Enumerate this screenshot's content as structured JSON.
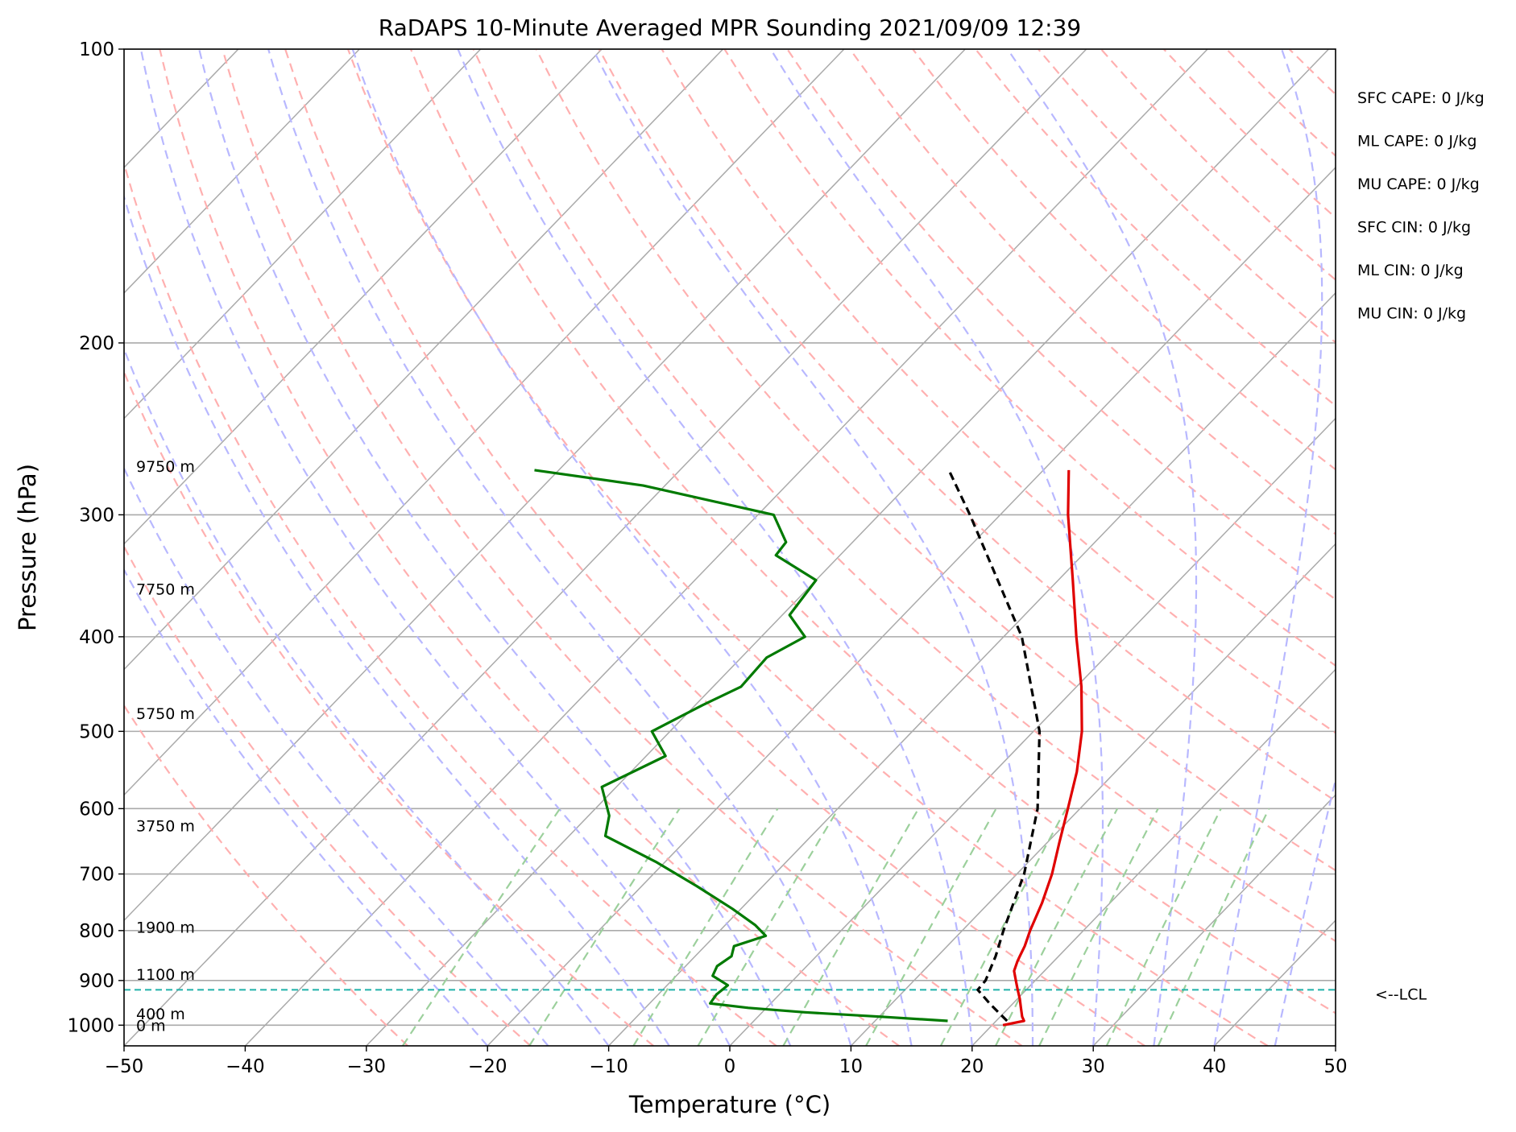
{
  "chart_data": {
    "type": "line",
    "subtype": "skew-T log-p",
    "title": "RaDAPS 10-Minute Averaged MPR Sounding 2021/09/09 12:39",
    "xlabel": "Temperature (°C)",
    "ylabel": "Pressure (hPa)",
    "xlim": [
      -50,
      50
    ],
    "ylim": [
      1050,
      100
    ],
    "y_scale": "log",
    "x_ticks": [
      "−50",
      "−40",
      "−30",
      "−20",
      "−10",
      "0",
      "10",
      "20",
      "30",
      "40",
      "50"
    ],
    "y_ticks": [
      "100",
      "200",
      "300",
      "400",
      "500",
      "600",
      "700",
      "800",
      "900",
      "1000"
    ],
    "grid": true,
    "series": [
      {
        "role": "temperature",
        "color": "#e00000",
        "points": [
          [
            1000,
            20.9
          ],
          [
            990,
            22.3
          ],
          [
            980,
            21.8
          ],
          [
            960,
            21.0
          ],
          [
            940,
            20.2
          ],
          [
            920,
            19.3
          ],
          [
            900,
            18.4
          ],
          [
            880,
            17.5
          ],
          [
            860,
            17.0
          ],
          [
            850,
            16.8
          ],
          [
            830,
            16.4
          ],
          [
            800,
            15.6
          ],
          [
            750,
            14.4
          ],
          [
            700,
            12.9
          ],
          [
            650,
            11.0
          ],
          [
            600,
            9.0
          ],
          [
            550,
            6.8
          ],
          [
            500,
            4.0
          ],
          [
            450,
            0.4
          ],
          [
            400,
            -4.0
          ],
          [
            350,
            -8.8
          ],
          [
            300,
            -14.4
          ],
          [
            270,
            -17.9
          ]
        ]
      },
      {
        "role": "dewpoint",
        "color": "#007a00",
        "points": [
          [
            990,
            16.0
          ],
          [
            980,
            10.0
          ],
          [
            970,
            3.5
          ],
          [
            960,
            -1.5
          ],
          [
            950,
            -5.0
          ],
          [
            930,
            -5.2
          ],
          [
            910,
            -5.0
          ],
          [
            890,
            -7.0
          ],
          [
            870,
            -7.4
          ],
          [
            850,
            -7.0
          ],
          [
            830,
            -7.6
          ],
          [
            810,
            -5.8
          ],
          [
            790,
            -7.5
          ],
          [
            760,
            -10.7
          ],
          [
            720,
            -15.5
          ],
          [
            680,
            -20.8
          ],
          [
            640,
            -27.0
          ],
          [
            610,
            -28.3
          ],
          [
            570,
            -31.2
          ],
          [
            530,
            -28.4
          ],
          [
            500,
            -31.5
          ],
          [
            470,
            -29.4
          ],
          [
            450,
            -27.7
          ],
          [
            420,
            -27.9
          ],
          [
            400,
            -26.4
          ],
          [
            380,
            -29.4
          ],
          [
            350,
            -30.0
          ],
          [
            330,
            -35.3
          ],
          [
            320,
            -35.5
          ],
          [
            300,
            -38.7
          ],
          [
            280,
            -51.8
          ],
          [
            270,
            -62.0
          ]
        ]
      },
      {
        "role": "parcel",
        "color": "#000000",
        "dashed": true,
        "points": [
          [
            990,
            20.9
          ],
          [
            952,
            18.2
          ],
          [
            920,
            16.0
          ],
          [
            900,
            15.9
          ],
          [
            850,
            14.8
          ],
          [
            800,
            13.4
          ],
          [
            700,
            10.6
          ],
          [
            600,
            6.5
          ],
          [
            500,
            0.5
          ],
          [
            400,
            -8.5
          ],
          [
            300,
            -22.5
          ],
          [
            270,
            -27.8
          ]
        ]
      }
    ],
    "lcl": {
      "pressure": 920,
      "label": "<--LCL",
      "color": "#20b2aa"
    },
    "height_labels": [
      {
        "text": "9750 m",
        "pressure": 268
      },
      {
        "text": "7750 m",
        "pressure": 358
      },
      {
        "text": "5750 m",
        "pressure": 480
      },
      {
        "text": "3750 m",
        "pressure": 626
      },
      {
        "text": "1900 m",
        "pressure": 795
      },
      {
        "text": "1100 m",
        "pressure": 888
      },
      {
        "text": "400 m",
        "pressure": 975
      },
      {
        "text": "0 m",
        "pressure": 1002
      }
    ],
    "indices": [
      "SFC CAPE: 0 J/kg",
      "ML CAPE: 0 J/kg",
      "MU CAPE: 0 J/kg",
      "SFC CIN: 0 J/kg",
      "ML CIN: 0 J/kg",
      "MU CIN: 0 J/kg"
    ],
    "colors": {
      "isotherm": "#aaaaaa",
      "dry_adiabat": "#ffb0b0",
      "moist_adiabat": "#b8b8ff",
      "mixing_ratio": "#9cd09c"
    }
  }
}
